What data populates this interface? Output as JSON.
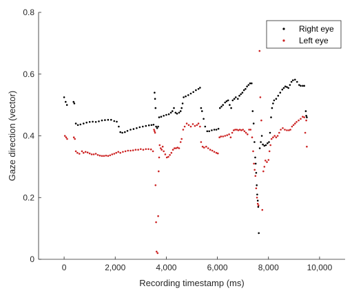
{
  "chart_data": {
    "type": "scatter",
    "title": "",
    "xlabel": "Recording timestamp (ms)",
    "ylabel": "Gaze direction (vector)",
    "xlim": [
      -1000,
      11000
    ],
    "ylim": [
      0,
      0.8
    ],
    "xticks": [
      0,
      2000,
      4000,
      6000,
      8000,
      10000
    ],
    "xtick_labels": [
      "0",
      "2,000",
      "4,000",
      "6,000",
      "8,000",
      "10,000"
    ],
    "yticks": [
      0,
      0.2,
      0.4,
      0.6,
      0.8
    ],
    "ytick_labels": [
      "0",
      "0.2",
      "0.4",
      "0.6",
      "0.8"
    ],
    "grid": false,
    "legend_position": "top-right",
    "series": [
      {
        "name": "Right eye",
        "color": "#000000",
        "points": [
          [
            0,
            0.525
          ],
          [
            60,
            0.51
          ],
          [
            110,
            0.5
          ],
          [
            370,
            0.51
          ],
          [
            400,
            0.505
          ],
          [
            460,
            0.44
          ],
          [
            540,
            0.435
          ],
          [
            640,
            0.437
          ],
          [
            760,
            0.44
          ],
          [
            880,
            0.443
          ],
          [
            1000,
            0.445
          ],
          [
            1120,
            0.446
          ],
          [
            1240,
            0.445
          ],
          [
            1360,
            0.447
          ],
          [
            1480,
            0.45
          ],
          [
            1600,
            0.451
          ],
          [
            1720,
            0.452
          ],
          [
            1840,
            0.452
          ],
          [
            1960,
            0.448
          ],
          [
            2060,
            0.446
          ],
          [
            2140,
            0.43
          ],
          [
            2200,
            0.412
          ],
          [
            2280,
            0.41
          ],
          [
            2380,
            0.412
          ],
          [
            2480,
            0.416
          ],
          [
            2600,
            0.42
          ],
          [
            2720,
            0.422
          ],
          [
            2840,
            0.425
          ],
          [
            2960,
            0.428
          ],
          [
            3080,
            0.43
          ],
          [
            3200,
            0.432
          ],
          [
            3320,
            0.434
          ],
          [
            3420,
            0.435
          ],
          [
            3500,
            0.436
          ],
          [
            3540,
            0.54
          ],
          [
            3560,
            0.52
          ],
          [
            3580,
            0.49
          ],
          [
            3600,
            0.43
          ],
          [
            3640,
            0.425
          ],
          [
            3680,
            0.43
          ],
          [
            3720,
            0.46
          ],
          [
            3800,
            0.462
          ],
          [
            3900,
            0.465
          ],
          [
            4000,
            0.468
          ],
          [
            4100,
            0.47
          ],
          [
            4180,
            0.475
          ],
          [
            4240,
            0.48
          ],
          [
            4300,
            0.49
          ],
          [
            4360,
            0.475
          ],
          [
            4420,
            0.472
          ],
          [
            4500,
            0.475
          ],
          [
            4560,
            0.48
          ],
          [
            4600,
            0.49
          ],
          [
            4640,
            0.505
          ],
          [
            4680,
            0.525
          ],
          [
            4760,
            0.528
          ],
          [
            4860,
            0.532
          ],
          [
            4960,
            0.537
          ],
          [
            5060,
            0.542
          ],
          [
            5160,
            0.548
          ],
          [
            5260,
            0.552
          ],
          [
            5320,
            0.556
          ],
          [
            5360,
            0.49
          ],
          [
            5400,
            0.48
          ],
          [
            5460,
            0.455
          ],
          [
            5520,
            0.43
          ],
          [
            5600,
            0.415
          ],
          [
            5680,
            0.415
          ],
          [
            5780,
            0.418
          ],
          [
            5880,
            0.42
          ],
          [
            5960,
            0.42
          ],
          [
            6040,
            0.423
          ],
          [
            6100,
            0.49
          ],
          [
            6160,
            0.495
          ],
          [
            6220,
            0.5
          ],
          [
            6300,
            0.508
          ],
          [
            6360,
            0.512
          ],
          [
            6420,
            0.515
          ],
          [
            6480,
            0.5
          ],
          [
            6540,
            0.49
          ],
          [
            6600,
            0.515
          ],
          [
            6660,
            0.52
          ],
          [
            6720,
            0.525
          ],
          [
            6800,
            0.52
          ],
          [
            6860,
            0.53
          ],
          [
            6920,
            0.535
          ],
          [
            6980,
            0.54
          ],
          [
            7040,
            0.548
          ],
          [
            7100,
            0.552
          ],
          [
            7160,
            0.56
          ],
          [
            7220,
            0.565
          ],
          [
            7280,
            0.57
          ],
          [
            7340,
            0.57
          ],
          [
            7380,
            0.48
          ],
          [
            7420,
            0.44
          ],
          [
            7450,
            0.38
          ],
          [
            7480,
            0.33
          ],
          [
            7500,
            0.31
          ],
          [
            7520,
            0.28
          ],
          [
            7540,
            0.24
          ],
          [
            7560,
            0.21
          ],
          [
            7580,
            0.19
          ],
          [
            7600,
            0.17
          ],
          [
            7620,
            0.085
          ],
          [
            7660,
            0.36
          ],
          [
            7700,
            0.38
          ],
          [
            7740,
            0.4
          ],
          [
            7780,
            0.372
          ],
          [
            7840,
            0.368
          ],
          [
            7900,
            0.37
          ],
          [
            7960,
            0.376
          ],
          [
            8020,
            0.38
          ],
          [
            8060,
            0.41
          ],
          [
            8100,
            0.46
          ],
          [
            8140,
            0.49
          ],
          [
            8180,
            0.505
          ],
          [
            8220,
            0.515
          ],
          [
            8300,
            0.52
          ],
          [
            8380,
            0.53
          ],
          [
            8460,
            0.54
          ],
          [
            8540,
            0.55
          ],
          [
            8600,
            0.555
          ],
          [
            8660,
            0.56
          ],
          [
            8720,
            0.558
          ],
          [
            8780,
            0.555
          ],
          [
            8840,
            0.565
          ],
          [
            8900,
            0.575
          ],
          [
            8960,
            0.58
          ],
          [
            9040,
            0.582
          ],
          [
            9120,
            0.575
          ],
          [
            9200,
            0.565
          ],
          [
            9260,
            0.562
          ],
          [
            9340,
            0.562
          ],
          [
            9400,
            0.562
          ],
          [
            9460,
            0.48
          ],
          [
            9480,
            0.465
          ],
          [
            9500,
            0.46
          ]
        ]
      },
      {
        "name": "Left eye",
        "color": "#cc2222",
        "points": [
          [
            30,
            0.4
          ],
          [
            80,
            0.395
          ],
          [
            120,
            0.39
          ],
          [
            380,
            0.395
          ],
          [
            420,
            0.39
          ],
          [
            460,
            0.35
          ],
          [
            520,
            0.345
          ],
          [
            600,
            0.342
          ],
          [
            700,
            0.35
          ],
          [
            760,
            0.345
          ],
          [
            840,
            0.348
          ],
          [
            920,
            0.346
          ],
          [
            1000,
            0.343
          ],
          [
            1080,
            0.34
          ],
          [
            1160,
            0.34
          ],
          [
            1240,
            0.342
          ],
          [
            1320,
            0.338
          ],
          [
            1400,
            0.336
          ],
          [
            1480,
            0.335
          ],
          [
            1560,
            0.335
          ],
          [
            1640,
            0.336
          ],
          [
            1720,
            0.335
          ],
          [
            1800,
            0.337
          ],
          [
            1880,
            0.34
          ],
          [
            1960,
            0.342
          ],
          [
            2040,
            0.345
          ],
          [
            2120,
            0.348
          ],
          [
            2200,
            0.345
          ],
          [
            2300,
            0.348
          ],
          [
            2400,
            0.35
          ],
          [
            2500,
            0.352
          ],
          [
            2600,
            0.352
          ],
          [
            2700,
            0.353
          ],
          [
            2800,
            0.355
          ],
          [
            2900,
            0.355
          ],
          [
            3000,
            0.357
          ],
          [
            3100,
            0.355
          ],
          [
            3200,
            0.357
          ],
          [
            3300,
            0.357
          ],
          [
            3400,
            0.356
          ],
          [
            3480,
            0.35
          ],
          [
            3520,
            0.42
          ],
          [
            3540,
            0.415
          ],
          [
            3560,
            0.41
          ],
          [
            3580,
            0.24
          ],
          [
            3600,
            0.12
          ],
          [
            3620,
            0.025
          ],
          [
            3660,
            0.02
          ],
          [
            3680,
            0.14
          ],
          [
            3700,
            0.285
          ],
          [
            3720,
            0.33
          ],
          [
            3740,
            0.37
          ],
          [
            3780,
            0.36
          ],
          [
            3820,
            0.355
          ],
          [
            3860,
            0.365
          ],
          [
            3900,
            0.35
          ],
          [
            3960,
            0.34
          ],
          [
            4020,
            0.33
          ],
          [
            4080,
            0.332
          ],
          [
            4140,
            0.338
          ],
          [
            4200,
            0.345
          ],
          [
            4260,
            0.355
          ],
          [
            4320,
            0.36
          ],
          [
            4380,
            0.36
          ],
          [
            4440,
            0.362
          ],
          [
            4500,
            0.36
          ],
          [
            4560,
            0.38
          ],
          [
            4600,
            0.39
          ],
          [
            4660,
            0.42
          ],
          [
            4720,
            0.43
          ],
          [
            4800,
            0.44
          ],
          [
            4880,
            0.435
          ],
          [
            4960,
            0.43
          ],
          [
            5040,
            0.438
          ],
          [
            5120,
            0.432
          ],
          [
            5200,
            0.435
          ],
          [
            5260,
            0.44
          ],
          [
            5320,
            0.43
          ],
          [
            5360,
            0.38
          ],
          [
            5420,
            0.365
          ],
          [
            5480,
            0.362
          ],
          [
            5560,
            0.365
          ],
          [
            5640,
            0.36
          ],
          [
            5720,
            0.355
          ],
          [
            5800,
            0.352
          ],
          [
            5880,
            0.348
          ],
          [
            5960,
            0.345
          ],
          [
            6020,
            0.343
          ],
          [
            6080,
            0.395
          ],
          [
            6140,
            0.398
          ],
          [
            6220,
            0.398
          ],
          [
            6300,
            0.4
          ],
          [
            6380,
            0.402
          ],
          [
            6460,
            0.405
          ],
          [
            6520,
            0.395
          ],
          [
            6580,
            0.41
          ],
          [
            6640,
            0.418
          ],
          [
            6700,
            0.42
          ],
          [
            6760,
            0.42
          ],
          [
            6820,
            0.418
          ],
          [
            6880,
            0.42
          ],
          [
            6940,
            0.418
          ],
          [
            7000,
            0.42
          ],
          [
            7060,
            0.415
          ],
          [
            7120,
            0.41
          ],
          [
            7180,
            0.405
          ],
          [
            7240,
            0.42
          ],
          [
            7300,
            0.42
          ],
          [
            7360,
            0.395
          ],
          [
            7400,
            0.35
          ],
          [
            7430,
            0.31
          ],
          [
            7460,
            0.29
          ],
          [
            7490,
            0.27
          ],
          [
            7520,
            0.23
          ],
          [
            7550,
            0.2
          ],
          [
            7580,
            0.18
          ],
          [
            7610,
            0.175
          ],
          [
            7650,
            0.675
          ],
          [
            7680,
            0.525
          ],
          [
            7720,
            0.45
          ],
          [
            7760,
            0.16
          ],
          [
            7800,
            0.285
          ],
          [
            7840,
            0.3
          ],
          [
            7880,
            0.32
          ],
          [
            7940,
            0.315
          ],
          [
            8000,
            0.322
          ],
          [
            8040,
            0.35
          ],
          [
            8080,
            0.37
          ],
          [
            8120,
            0.39
          ],
          [
            8180,
            0.395
          ],
          [
            8240,
            0.4
          ],
          [
            8300,
            0.395
          ],
          [
            8360,
            0.4
          ],
          [
            8420,
            0.41
          ],
          [
            8480,
            0.42
          ],
          [
            8560,
            0.425
          ],
          [
            8640,
            0.42
          ],
          [
            8720,
            0.418
          ],
          [
            8800,
            0.418
          ],
          [
            8860,
            0.42
          ],
          [
            8920,
            0.43
          ],
          [
            8980,
            0.435
          ],
          [
            9040,
            0.44
          ],
          [
            9100,
            0.445
          ],
          [
            9180,
            0.45
          ],
          [
            9260,
            0.455
          ],
          [
            9340,
            0.462
          ],
          [
            9400,
            0.46
          ],
          [
            9440,
            0.41
          ],
          [
            9480,
            0.45
          ],
          [
            9500,
            0.365
          ]
        ]
      }
    ]
  }
}
